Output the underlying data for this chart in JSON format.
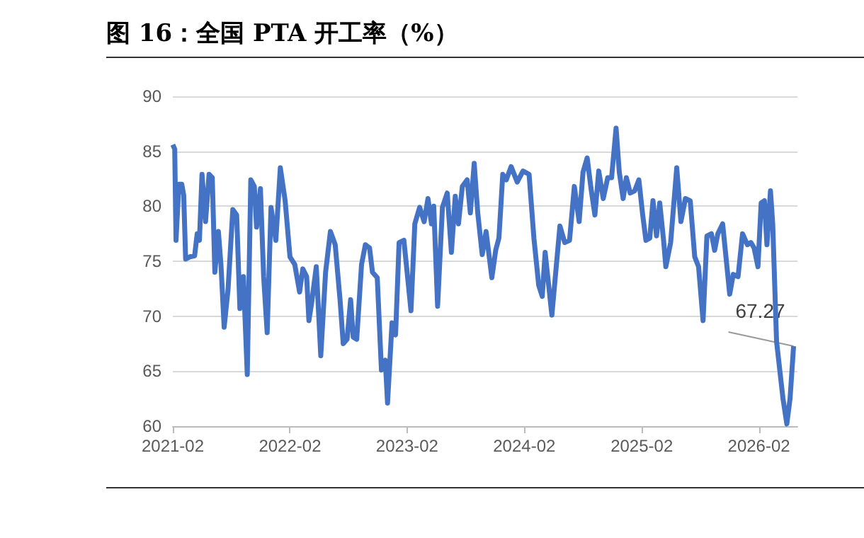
{
  "chart_data": {
    "type": "line",
    "title": "图 16：全国 PTA 开工率（%）",
    "color": "#4472c4",
    "x": [
      "2021-02-01",
      "2021-02-07",
      "2021-02-11",
      "2021-02-20",
      "2021-03-01",
      "2021-03-07",
      "2021-03-13",
      "2021-03-26",
      "2021-04-10",
      "2021-04-18",
      "2021-04-25",
      "2021-05-03",
      "2021-05-14",
      "2021-05-25",
      "2021-06-04",
      "2021-06-12",
      "2021-06-23",
      "2021-07-01",
      "2021-07-11",
      "2021-07-23",
      "2021-08-07",
      "2021-08-19",
      "2021-08-29",
      "2021-09-09",
      "2021-09-21",
      "2021-10-02",
      "2021-10-13",
      "2021-10-20",
      "2021-11-01",
      "2021-11-11",
      "2021-11-22",
      "2021-12-04",
      "2021-12-19",
      "2022-01-02",
      "2022-01-17",
      "2022-02-01",
      "2022-02-16",
      "2022-03-03",
      "2022-03-13",
      "2022-03-25",
      "2022-04-01",
      "2022-04-09",
      "2022-04-24",
      "2022-05-08",
      "2022-05-23",
      "2022-06-07",
      "2022-06-22",
      "2022-07-07",
      "2022-07-17",
      "2022-07-29",
      "2022-08-09",
      "2022-08-17",
      "2022-08-28",
      "2022-09-12",
      "2022-09-24",
      "2022-10-07",
      "2022-10-16",
      "2022-10-31",
      "2022-11-13",
      "2022-11-25",
      "2022-12-02",
      "2022-12-16",
      "2022-12-27",
      "2023-01-07",
      "2023-01-22",
      "2023-02-13",
      "2023-02-25",
      "2023-03-12",
      "2023-03-26",
      "2023-04-07",
      "2023-04-18",
      "2023-04-25",
      "2023-05-07",
      "2023-05-22",
      "2023-06-06",
      "2023-06-19",
      "2023-07-01",
      "2023-07-11",
      "2023-07-23",
      "2023-08-07",
      "2023-08-17",
      "2023-08-29",
      "2023-09-09",
      "2023-09-23",
      "2023-10-05",
      "2023-10-23",
      "2023-11-04",
      "2023-11-14",
      "2023-11-26",
      "2023-12-07",
      "2023-12-22",
      "2024-01-10",
      "2024-01-28",
      "2024-02-16",
      "2024-03-02",
      "2024-03-17",
      "2024-03-28",
      "2024-04-06",
      "2024-04-27",
      "2024-05-22",
      "2024-06-06",
      "2024-06-21",
      "2024-07-06",
      "2024-07-21",
      "2024-08-02",
      "2024-08-15",
      "2024-08-27",
      "2024-09-08",
      "2024-09-20",
      "2024-10-04",
      "2024-10-18",
      "2024-10-30",
      "2024-11-13",
      "2024-11-23",
      "2024-12-05",
      "2024-12-15",
      "2024-12-27",
      "2025-01-10",
      "2025-01-23",
      "2025-02-04",
      "2025-02-14",
      "2025-02-26",
      "2025-03-08",
      "2025-03-19",
      "2025-03-29",
      "2025-04-10",
      "2025-04-17",
      "2025-05-02",
      "2025-05-21",
      "2025-06-03",
      "2025-06-17",
      "2025-07-02",
      "2025-07-16",
      "2025-07-28",
      "2025-08-11",
      "2025-08-23",
      "2025-09-06",
      "2025-09-16",
      "2025-09-26",
      "2025-10-11",
      "2025-11-02",
      "2025-11-13",
      "2025-11-28",
      "2025-12-12",
      "2025-12-27",
      "2026-01-07",
      "2026-01-17",
      "2026-01-29",
      "2026-02-08",
      "2026-02-18",
      "2026-02-26",
      "2026-03-09",
      "2026-03-16",
      "2026-03-28",
      "2026-04-07",
      "2026-04-17",
      "2026-04-29",
      "2026-05-09",
      "2026-05-20"
    ],
    "values": [
      85.6,
      85.2,
      76.9,
      82,
      82,
      81,
      75.2,
      75.4,
      75.5,
      77.5,
      76.9,
      82.9,
      78.6,
      82.9,
      82.6,
      74,
      77.7,
      74.7,
      69,
      72.4,
      79.7,
      79.2,
      70.7,
      73.6,
      64.7,
      82.4,
      81.8,
      78.1,
      81.6,
      73.6,
      68.5,
      79.9,
      76.9,
      83.5,
      80.5,
      75.4,
      74.7,
      72.2,
      74.3,
      73.6,
      69.6,
      71.1,
      74.5,
      66.4,
      74,
      77.7,
      76.5,
      71.5,
      67.5,
      67.9,
      71.5,
      68.1,
      67.9,
      74.7,
      76.5,
      76.2,
      74,
      73.5,
      65.1,
      66,
      62.1,
      69.4,
      68.3,
      76.7,
      76.9,
      70.5,
      78.4,
      79.9,
      78.6,
      80.7,
      78.4,
      80,
      70.9,
      79.9,
      81.2,
      75.8,
      80.9,
      78.4,
      81.8,
      82.4,
      79.4,
      83.9,
      79.4,
      75.6,
      77.7,
      73.5,
      76,
      77.1,
      82.9,
      82.4,
      83.6,
      82.2,
      83.2,
      82.9,
      77.1,
      72.8,
      71.8,
      75.8,
      70.1,
      78.2,
      76.7,
      76.9,
      81.8,
      78.6,
      83.1,
      84.4,
      81.6,
      79.2,
      83.2,
      80.7,
      82.6,
      82.6,
      87.1,
      83.1,
      80.7,
      82.6,
      81.2,
      81.4,
      82.4,
      79.2,
      76.9,
      77.1,
      80.5,
      77.3,
      80.3,
      76.9,
      74.5,
      76.7,
      83.5,
      78.6,
      80.7,
      80.5,
      75.4,
      74.5,
      69.6,
      77.3,
      77.5,
      76,
      77.5,
      78.4,
      72,
      73.8,
      73.6,
      77.5,
      76.5,
      76.7,
      76.2,
      74.5,
      80.3,
      80.5,
      76.5,
      81.4,
      78.4,
      67.7,
      65.1,
      62.5,
      60.2,
      62.5,
      67.27
    ],
    "xlim": [
      "2021-02-01",
      "2026-06-01"
    ],
    "xticks": [
      {
        "value": "2021-02-01",
        "label": "2021-02"
      },
      {
        "value": "2022-02-01",
        "label": "2022-02"
      },
      {
        "value": "2023-02-01",
        "label": "2023-02"
      },
      {
        "value": "2024-02-01",
        "label": "2024-02"
      },
      {
        "value": "2025-02-01",
        "label": "2025-02"
      },
      {
        "value": "2026-02-01",
        "label": "2026-02"
      }
    ],
    "ylim": [
      60,
      90
    ],
    "yticks": [
      60,
      65,
      70,
      75,
      80,
      85,
      90
    ],
    "grid": "y",
    "marker": "none",
    "line_style": "solid",
    "annotations": [
      {
        "text": "67.27",
        "x": "2026-05-20",
        "y": 67.27
      }
    ]
  }
}
